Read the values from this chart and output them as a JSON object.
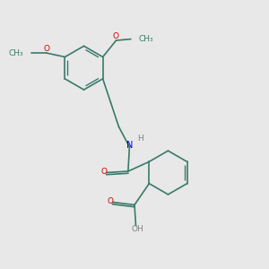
{
  "bg_color": "#e8e8e8",
  "bond_color": "#3a7a6a",
  "O_color": "#cc0000",
  "N_color": "#0000cc",
  "H_color": "#808080",
  "font_size": 6.5,
  "line_width": 1.2,
  "lw_inner": 1.0,
  "figsize": [
    3.0,
    3.0
  ],
  "dpi": 100,
  "xlim": [
    0,
    10
  ],
  "ylim": [
    0,
    10
  ]
}
